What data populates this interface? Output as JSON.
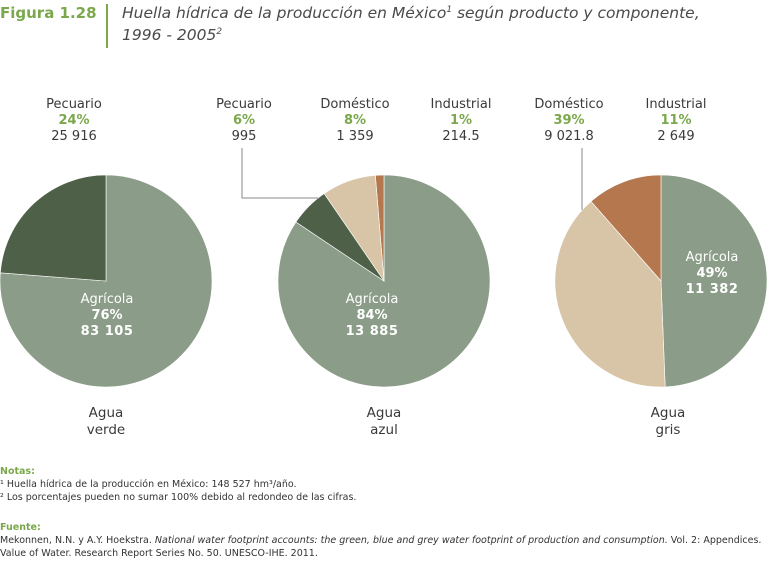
{
  "figure": {
    "label": "Figura 1.28",
    "title_line1": "Huella hídrica de la producción en México",
    "title_sup1": "1",
    "title_line1_rest": " según producto y componente,",
    "title_line2": "1996 - 2005",
    "title_sup2": "2"
  },
  "chart_data": [
    {
      "type": "pie",
      "caption_line1": "Agua",
      "caption_line2": "verde",
      "slices": [
        {
          "name": "Agrícola",
          "percent": "76%",
          "value": 83105,
          "value_label": "83 105",
          "color": "#8b9d88"
        },
        {
          "name": "Pecuario",
          "percent": "24%",
          "value": 25916,
          "value_label": "25 916",
          "color": "#4e6047"
        }
      ]
    },
    {
      "type": "pie",
      "caption_line1": "Agua",
      "caption_line2": "azul",
      "slices": [
        {
          "name": "Agrícola",
          "percent": "84%",
          "value": 13885,
          "value_label": "13 885",
          "color": "#8b9d88"
        },
        {
          "name": "Pecuario",
          "percent": "6%",
          "value": 995,
          "value_label": "995",
          "color": "#4e6047"
        },
        {
          "name": "Doméstico",
          "percent": "8%",
          "value": 1359,
          "value_label": "1 359",
          "color": "#d8c5a7"
        },
        {
          "name": "Industrial",
          "percent": "1%",
          "value": 214.5,
          "value_label": "214.5",
          "color": "#b5774d"
        }
      ]
    },
    {
      "type": "pie",
      "caption_line1": "Agua",
      "caption_line2": "gris",
      "slices": [
        {
          "name": "Agrícola",
          "percent": "49%",
          "value": 11382,
          "value_label": "11 382",
          "color": "#8b9d88"
        },
        {
          "name": "Doméstico",
          "percent": "39%",
          "value": 9021.8,
          "value_label": "9 021.8",
          "color": "#d8c5a7"
        },
        {
          "name": "Industrial",
          "percent": "11%",
          "value": 2649,
          "value_label": "2 649",
          "color": "#b5774d"
        }
      ]
    }
  ],
  "notes": {
    "heading": "Notas:",
    "note1": "¹ Huella hídrica de la producción en México: 148 527 hm³/año.",
    "note2": "² Los porcentajes pueden no sumar 100% debido al redondeo de las cifras."
  },
  "source": {
    "heading": "Fuente:",
    "authors": "Mekonnen, N.N. y A.Y. Hoekstra.",
    "work": "National water footprint accounts: the green, blue and grey water footprint of production and consumption.",
    "rest1": " Vol. 2: Appendices.",
    "line2": "Value of Water. Research Report Series No. 50. UNESCO-IHE. 2011."
  }
}
